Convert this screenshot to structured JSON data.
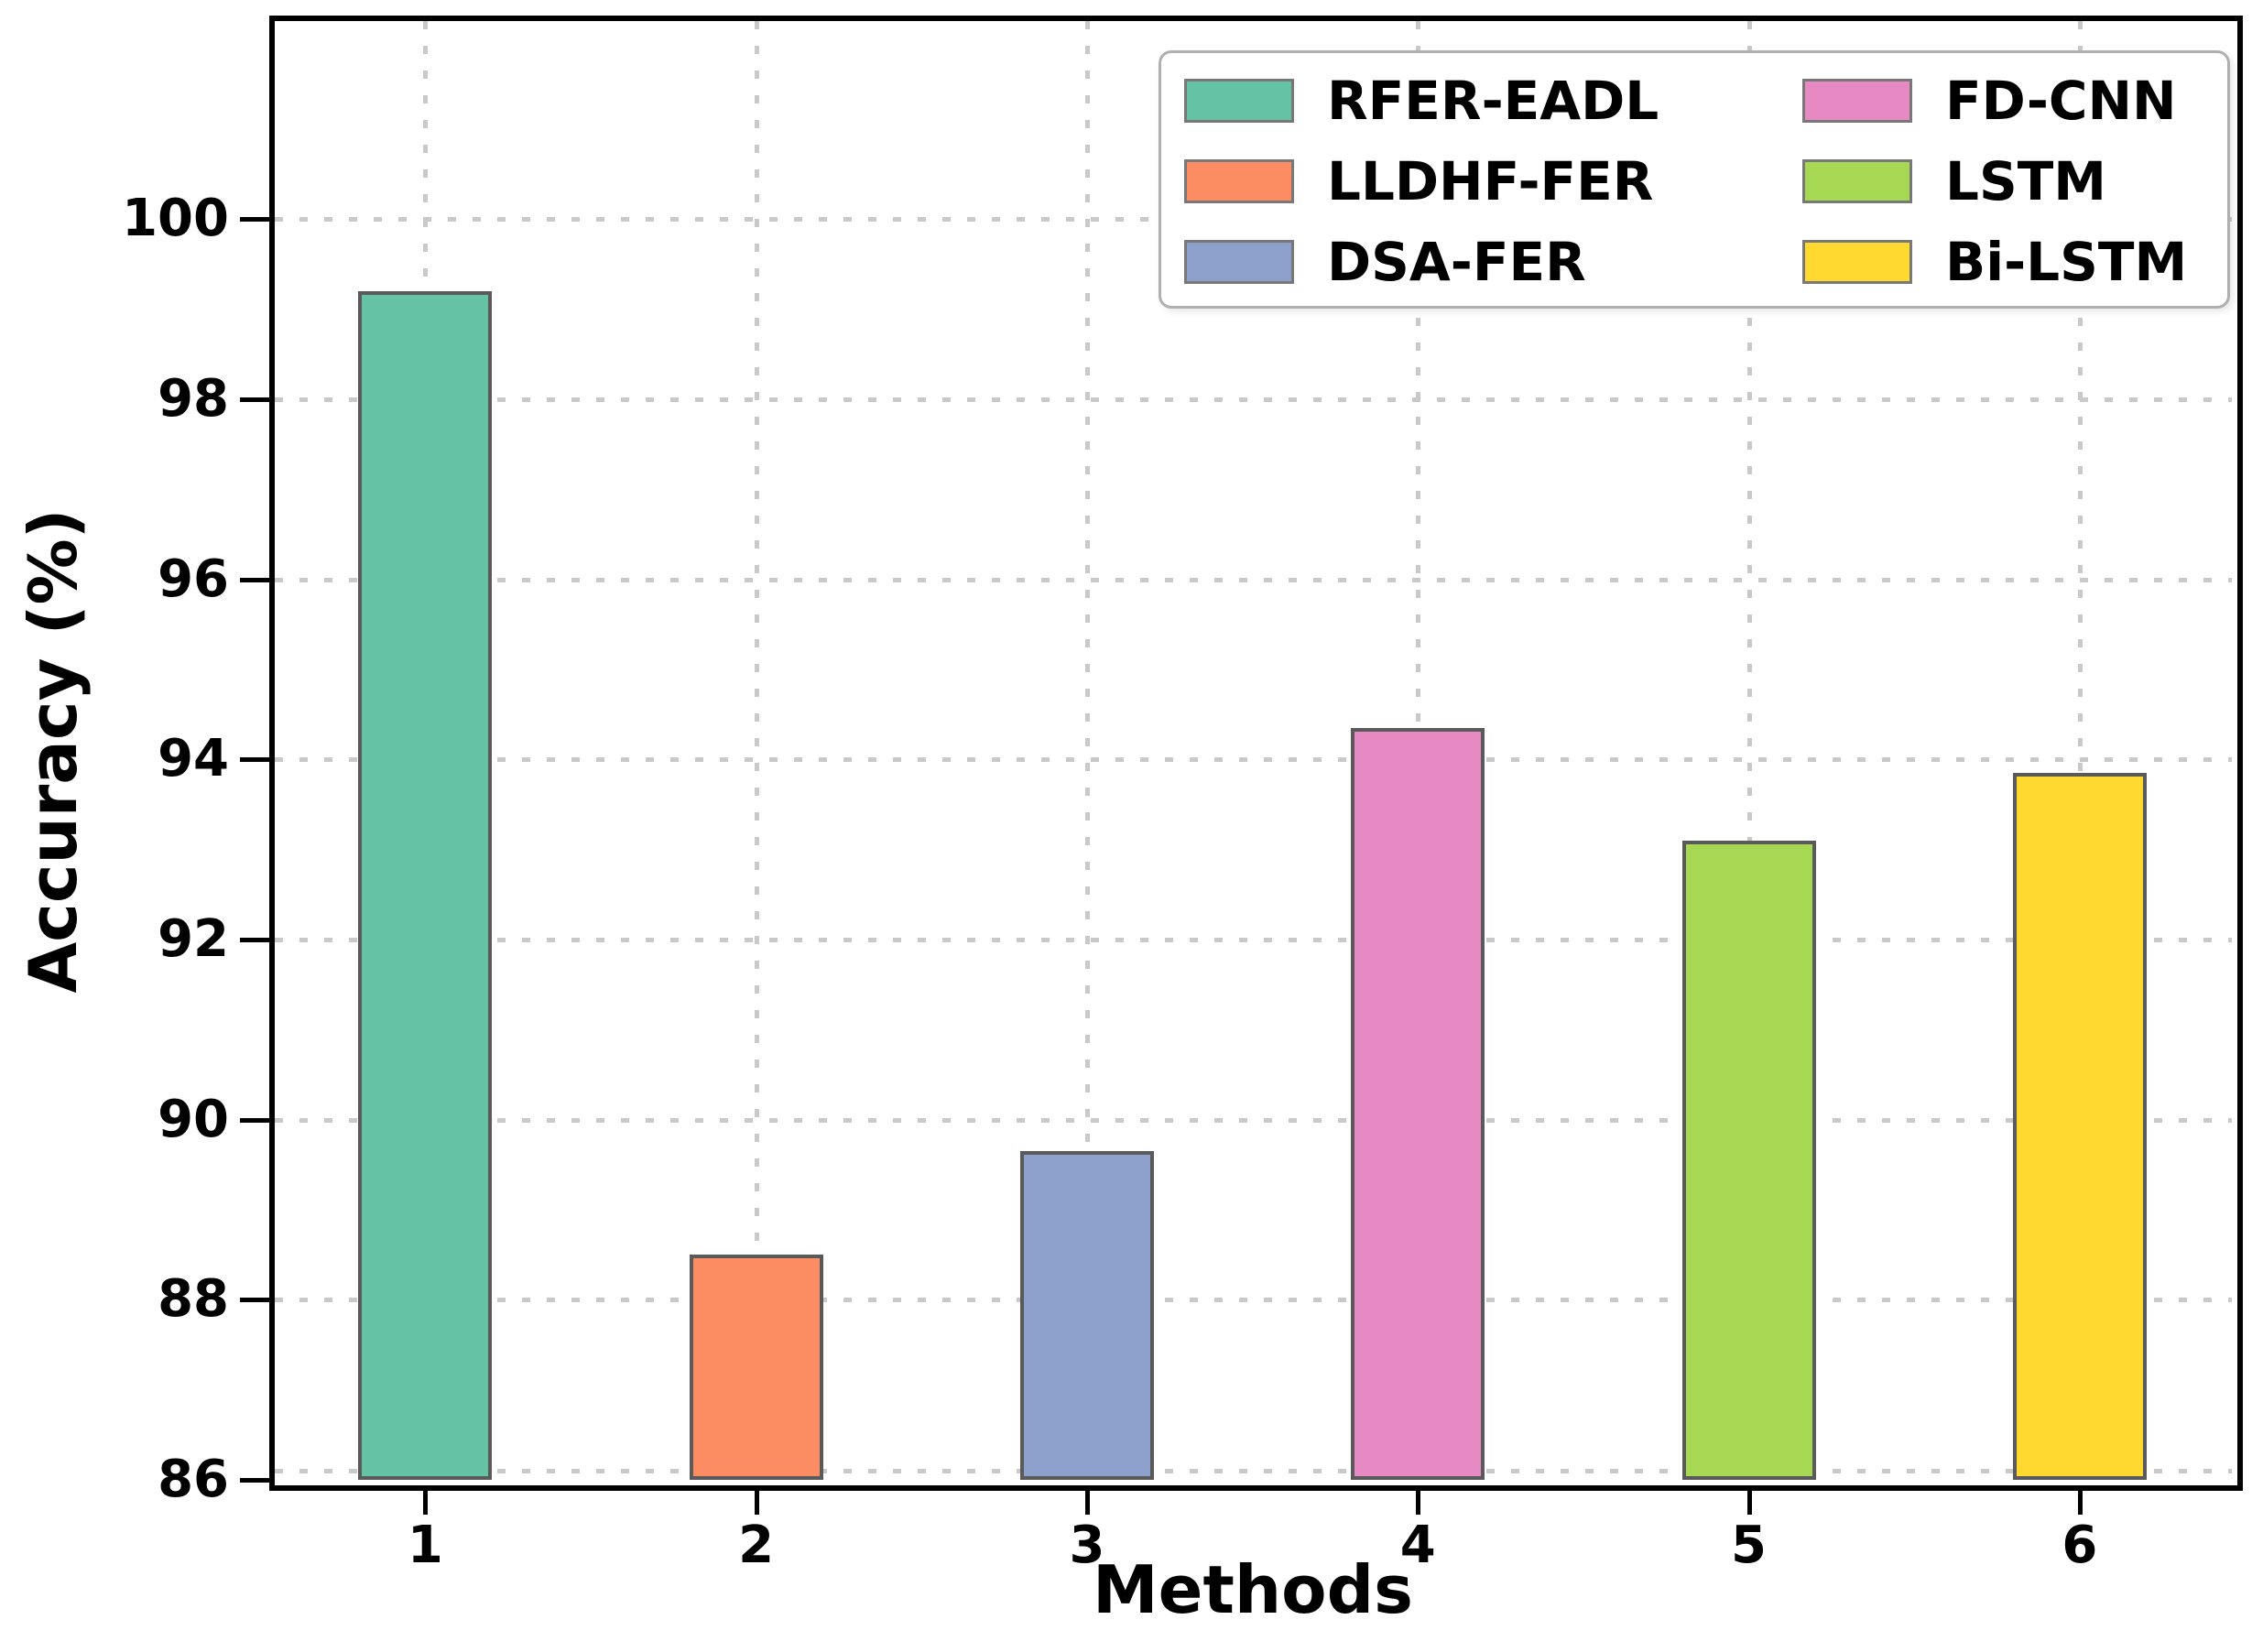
{
  "figure": {
    "xlabel": "Methods",
    "ylabel": "Accuracy (%)"
  },
  "chart_data": {
    "type": "bar",
    "title": "",
    "xlabel": "Methods",
    "ylabel": "Accuracy (%)",
    "categories": [
      "1",
      "2",
      "3",
      "4",
      "5",
      "6"
    ],
    "series": [
      {
        "name": "RFER-EADL",
        "category": "1",
        "value": 99.2,
        "color": "#66c2a5"
      },
      {
        "name": "LLDHF-FER",
        "category": "2",
        "value": 88.5,
        "color": "#fc8d62"
      },
      {
        "name": "DSA-FER",
        "category": "3",
        "value": 89.65,
        "color": "#8da0cb"
      },
      {
        "name": "FD-CNN",
        "category": "4",
        "value": 94.35,
        "color": "#e78ac3"
      },
      {
        "name": "LSTM",
        "category": "5",
        "value": 93.1,
        "color": "#a6d854"
      },
      {
        "name": "Bi-LSTM",
        "category": "6",
        "value": 93.85,
        "color": "#ffd92f"
      }
    ],
    "values": [
      99.2,
      88.5,
      89.65,
      94.35,
      93.1,
      93.85
    ],
    "ylim": [
      86,
      102.2
    ],
    "yticks": [
      86,
      88,
      90,
      92,
      94,
      96,
      98,
      100
    ],
    "xticks": [
      "1",
      "2",
      "3",
      "4",
      "5",
      "6"
    ],
    "grid": true,
    "grid_style": "dotted",
    "grid_color": "#c9c9c9",
    "bar_edge_color": "#5a5a5a",
    "legend": {
      "position": "upper right",
      "ncol": 2,
      "entries": [
        "RFER-EADL",
        "LLDHF-FER",
        "DSA-FER",
        "FD-CNN",
        "LSTM",
        "Bi-LSTM"
      ]
    }
  }
}
